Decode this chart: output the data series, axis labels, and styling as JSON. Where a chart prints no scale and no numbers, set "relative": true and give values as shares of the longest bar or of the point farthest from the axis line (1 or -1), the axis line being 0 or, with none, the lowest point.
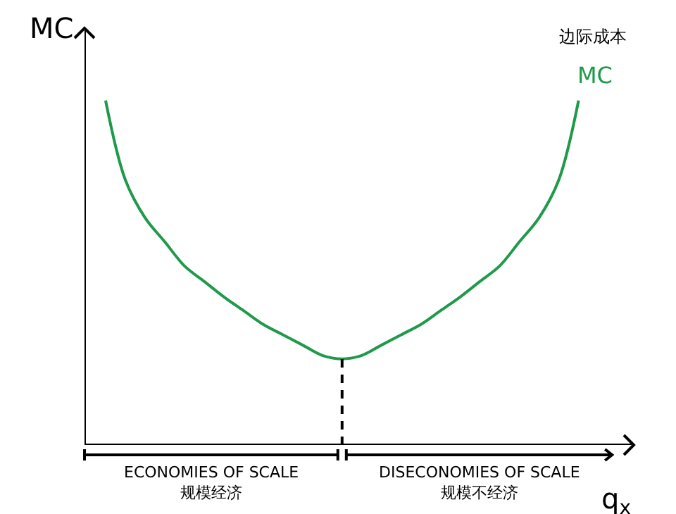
{
  "chart_data": {
    "type": "line",
    "relative": true,
    "xlabel": "q$_{x}$",
    "ylabel": "MC",
    "categories": [
      null,
      null,
      null,
      null,
      null,
      null,
      null,
      null,
      null,
      null,
      null,
      null,
      null,
      null,
      null,
      null,
      null,
      null,
      null,
      null,
      null,
      null,
      null,
      null,
      null,
      null,
      null
    ],
    "series": [
      {
        "name": "MC",
        "color": "#1e9a4a",
        "values": [
          1.0,
          0.77,
          0.66,
          0.59,
          0.52,
          0.475,
          0.43,
          0.39,
          0.35,
          0.32,
          0.29,
          0.26,
          0.25,
          0.26,
          0.29,
          0.32,
          0.35,
          0.39,
          0.43,
          0.475,
          0.52,
          0.59,
          0.66,
          0.77,
          1.0,
          null,
          null
        ]
      }
    ],
    "annotations": [
      "边际成本",
      "ECONOMIES OF SCALE\n规模经济",
      "DISECONOMIES OF SCALE\n规模不经济"
    ],
    "legend": false,
    "marker": "none",
    "line_style": "solid"
  }
}
